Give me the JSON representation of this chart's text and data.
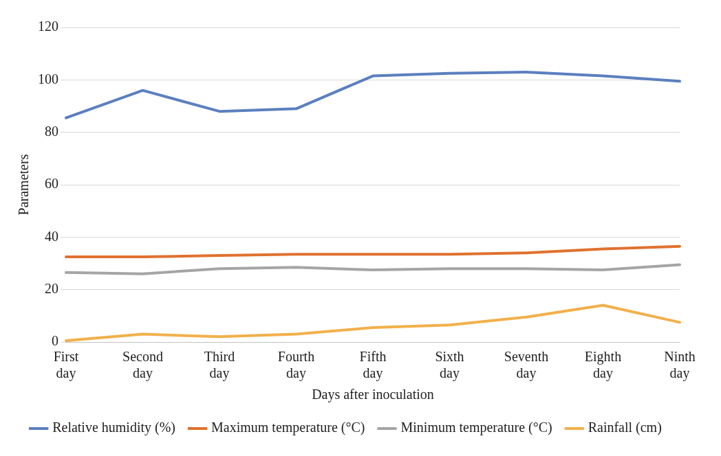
{
  "chart_data": {
    "type": "line",
    "xlabel": "Days after inoculation",
    "ylabel": "Parameters",
    "categories": [
      "First day",
      "Second day",
      "Third day",
      "Fourth day",
      "Fifth day",
      "Sixth day",
      "Seventh day",
      "Eighth day",
      "Ninth day"
    ],
    "series": [
      {
        "name": "Relative humidity (%)",
        "color": "#5b7fc0",
        "values": [
          85.5,
          96,
          88,
          89,
          101.5,
          102.5,
          103,
          101.5,
          99.5
        ]
      },
      {
        "name": "Maximum temperature (°C)",
        "color": "#e0712f",
        "values": [
          32.5,
          32.5,
          33,
          33.5,
          33.5,
          33.5,
          34,
          35.5,
          36.5
        ]
      },
      {
        "name": "Minimum temperature (°C)",
        "color": "#a5a5a5",
        "values": [
          26.5,
          26,
          28,
          28.5,
          27.5,
          28,
          28,
          27.5,
          29.5
        ]
      },
      {
        "name": "Rainfall (cm)",
        "color": "#f2b04a",
        "values": [
          0.5,
          3,
          2,
          3,
          5.5,
          6.5,
          9.5,
          14,
          7.5
        ]
      }
    ],
    "ylim": [
      0,
      120
    ],
    "yticks": [
      0,
      20,
      40,
      60,
      80,
      100,
      120
    ],
    "grid": "y",
    "legend": "bottom",
    "marker": "none",
    "line_style": "solid"
  }
}
